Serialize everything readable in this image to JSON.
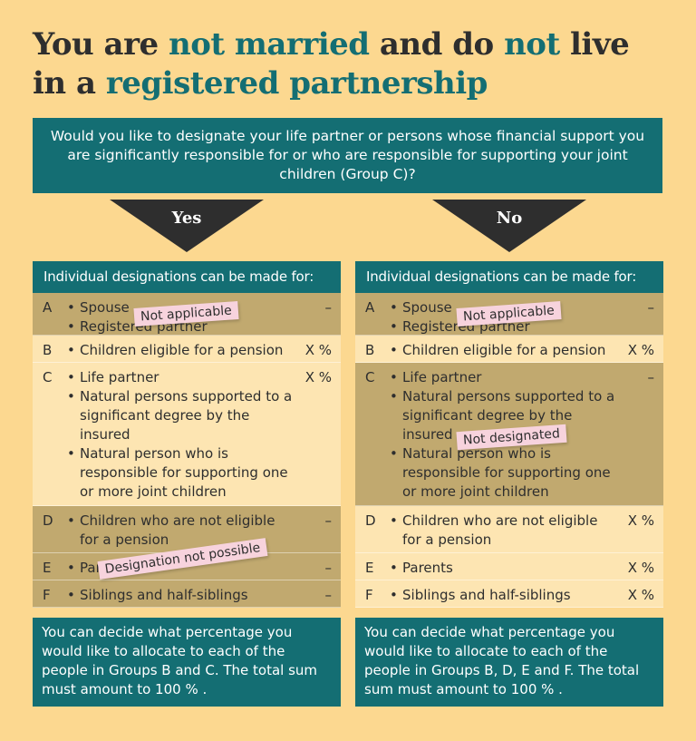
{
  "title": {
    "t1": "You are ",
    "t2": "not married",
    "t3": " and do ",
    "t4": "not",
    "t5": " live",
    "t6": "in a ",
    "t7": "registered partnership"
  },
  "question": "Would you like to designate your life partner or persons whose financial support you are significantly responsible for or who are responsible for supporting your joint children (Group C)?",
  "colors": {
    "teal": "#146e73",
    "dark": "#2e2e2e",
    "background": "#fcd890",
    "gray_row": "#c1a96f",
    "light_row": "#fde5b2",
    "sticker": "#f7d3dd"
  },
  "yes": {
    "arrow": "Yes",
    "header": "Individual designations can be made for:",
    "rows": [
      {
        "letter": "A",
        "items": [
          "Spouse",
          "Registered partner"
        ],
        "value": "–"
      },
      {
        "letter": "B",
        "items": [
          "Children eligible for a pension"
        ],
        "value": "X %"
      },
      {
        "letter": "C",
        "items": [
          "Life partner",
          "Natural persons supported to a significant degree by the insured",
          "Natural person who is responsible for supporting one or more joint children"
        ],
        "value": "X %"
      },
      {
        "letter": "D",
        "items": [
          "Children who are not eligible for a pension"
        ],
        "value": "–"
      },
      {
        "letter": "E",
        "items": [
          "Parents"
        ],
        "value": "–"
      },
      {
        "letter": "F",
        "items": [
          "Siblings and half-siblings"
        ],
        "value": "–"
      }
    ],
    "stickers": {
      "a": "Not applicable",
      "de": "Designation not possible"
    },
    "footer": "You can decide what percentage you would like to allocate to each of the people in Groups B and C. The total sum must amount to 100 % ."
  },
  "no": {
    "arrow": "No",
    "header": "Individual designations can be made for:",
    "rows": [
      {
        "letter": "A",
        "items": [
          "Spouse",
          "Registered partner"
        ],
        "value": "–"
      },
      {
        "letter": "B",
        "items": [
          "Children eligible for a pension"
        ],
        "value": "X %"
      },
      {
        "letter": "C",
        "items": [
          "Life partner",
          "Natural persons supported to a significant degree by the insured",
          "Natural person who is responsible for supporting one or more joint children"
        ],
        "value": "–"
      },
      {
        "letter": "D",
        "items": [
          "Children who are not eligible for a pension"
        ],
        "value": "X %"
      },
      {
        "letter": "E",
        "items": [
          "Parents"
        ],
        "value": "X %"
      },
      {
        "letter": "F",
        "items": [
          "Siblings and half-siblings"
        ],
        "value": "X %"
      }
    ],
    "stickers": {
      "a": "Not applicable",
      "c": "Not designated"
    },
    "footer": "You can decide what percentage you would like to allocate to each of the people in Groups B, D, E and F. The total sum must amount to 100 % ."
  }
}
